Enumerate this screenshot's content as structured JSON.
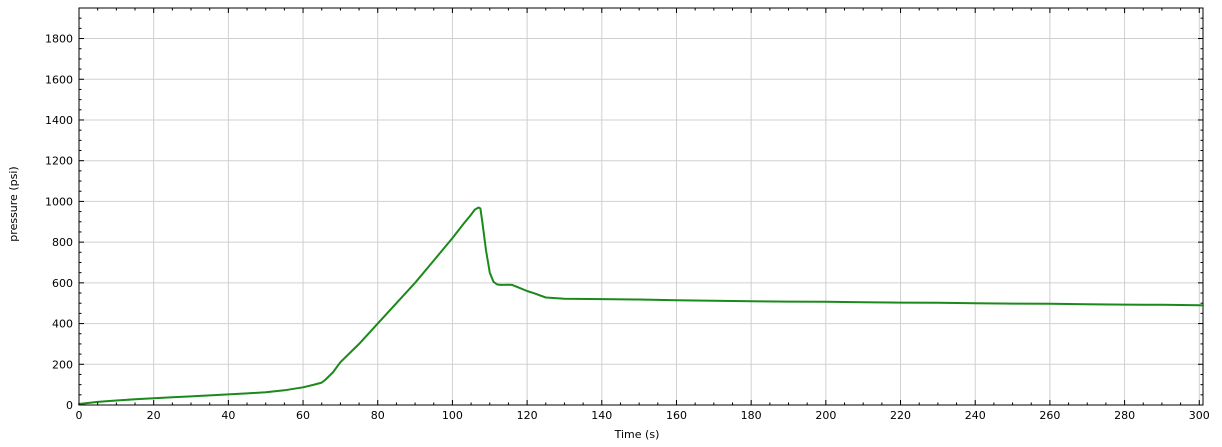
{
  "chart_data": {
    "type": "line",
    "title": "",
    "xlabel": "Time (s)",
    "ylabel": "pressure (psi)",
    "xlim": [
      0,
      301
    ],
    "ylim": [
      0,
      1950
    ],
    "x_ticks": [
      0,
      20,
      40,
      60,
      80,
      100,
      120,
      140,
      160,
      180,
      200,
      220,
      240,
      260,
      280,
      300
    ],
    "y_ticks": [
      0,
      200,
      400,
      600,
      800,
      1000,
      1200,
      1400,
      1600,
      1800
    ],
    "grid": true,
    "legend": "none",
    "colors": {
      "line": "#1a8a1a",
      "grid": "#d0d0d0",
      "axis": "#000000"
    },
    "series": [
      {
        "x": [
          0,
          5,
          10,
          15,
          20,
          25,
          30,
          35,
          40,
          45,
          50,
          55,
          60,
          63,
          65,
          66,
          68,
          70,
          75,
          80,
          85,
          90,
          95,
          100,
          103,
          105,
          106,
          107,
          107.5,
          108,
          109,
          110,
          111,
          112,
          113,
          115,
          116,
          118,
          120,
          122,
          125,
          130,
          140,
          150,
          160,
          170,
          180,
          190,
          200,
          210,
          220,
          230,
          240,
          250,
          260,
          270,
          280,
          290,
          300,
          301
        ],
        "y": [
          5,
          15,
          22,
          28,
          33,
          38,
          42,
          47,
          52,
          57,
          63,
          72,
          87,
          100,
          110,
          125,
          160,
          210,
          300,
          400,
          500,
          600,
          710,
          820,
          890,
          935,
          960,
          970,
          965,
          900,
          760,
          650,
          605,
          592,
          590,
          591,
          590,
          575,
          560,
          548,
          528,
          522,
          520,
          518,
          515,
          512,
          510,
          508,
          507,
          505,
          503,
          502,
          500,
          498,
          497,
          495,
          493,
          492,
          490,
          489
        ]
      }
    ]
  }
}
